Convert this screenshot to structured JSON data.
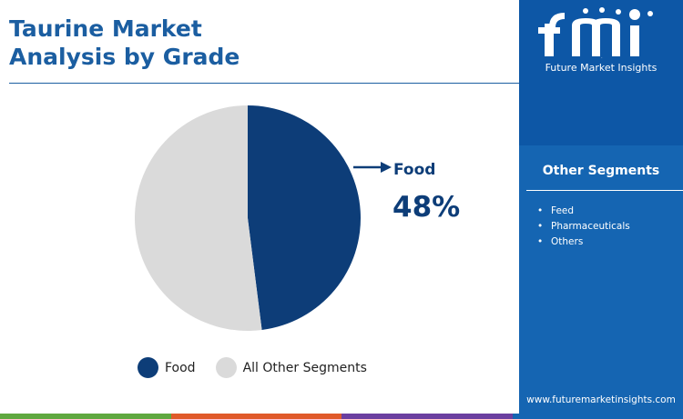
{
  "header": {
    "title_line1": "Taurine Market",
    "title_line2": "Analysis by Grade"
  },
  "chart_data": {
    "type": "pie",
    "title": "Taurine Market Analysis by Grade",
    "slices": [
      {
        "label": "Food",
        "value": 48,
        "color": "#0d3d78"
      },
      {
        "label": "All Other Segments",
        "value": 52,
        "color": "#dadada"
      }
    ],
    "callout": {
      "label": "Food",
      "value": "48%"
    },
    "legend": [
      "Food",
      "All Other Segments"
    ],
    "legend_position": "bottom"
  },
  "sidebar": {
    "logo_text": "fmi",
    "tagline": "Future Market Insights",
    "heading": "Other Segments",
    "items": [
      "Feed",
      "Pharmaceuticals",
      "Others"
    ],
    "website": "www.futuremarketinsights.com"
  },
  "colors": {
    "title": "#1b5ea1",
    "food": "#0d3d78",
    "others": "#dadada",
    "sidebar": "#1565b2",
    "bar": [
      "#5fa83f",
      "#e05a2a",
      "#6b3fa0",
      "#1565b2"
    ]
  }
}
